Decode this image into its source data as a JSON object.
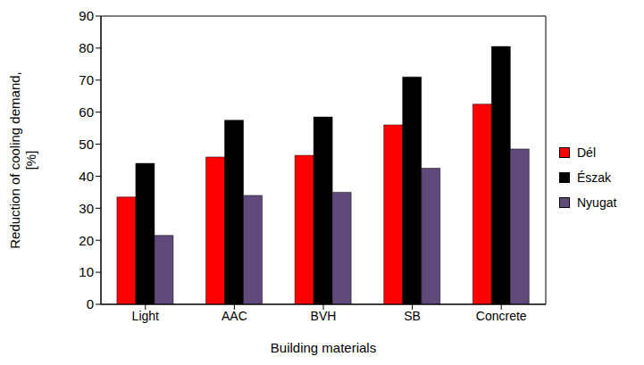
{
  "chart_data": {
    "type": "bar",
    "x_label": "Building materials",
    "y_label": "Reduction of cooling demand,\n[%]",
    "categories": [
      "Light",
      "AAC",
      "BVH",
      "SB",
      "Concrete"
    ],
    "series": [
      {
        "name": "Dél",
        "color": "#ff0000",
        "values": [
          33.5,
          46,
          46.5,
          56,
          62.5
        ]
      },
      {
        "name": "Észak",
        "color": "#000000",
        "values": [
          44,
          57.5,
          58.5,
          71,
          80.5
        ]
      },
      {
        "name": "Nyugat",
        "color": "#604a7b",
        "values": [
          21.5,
          34,
          35,
          42.5,
          48.5
        ]
      }
    ],
    "ylim": [
      0,
      90
    ],
    "yticks": [
      0,
      10,
      20,
      30,
      40,
      50,
      60,
      70,
      80,
      90
    ],
    "grid": false,
    "legend": "right"
  }
}
